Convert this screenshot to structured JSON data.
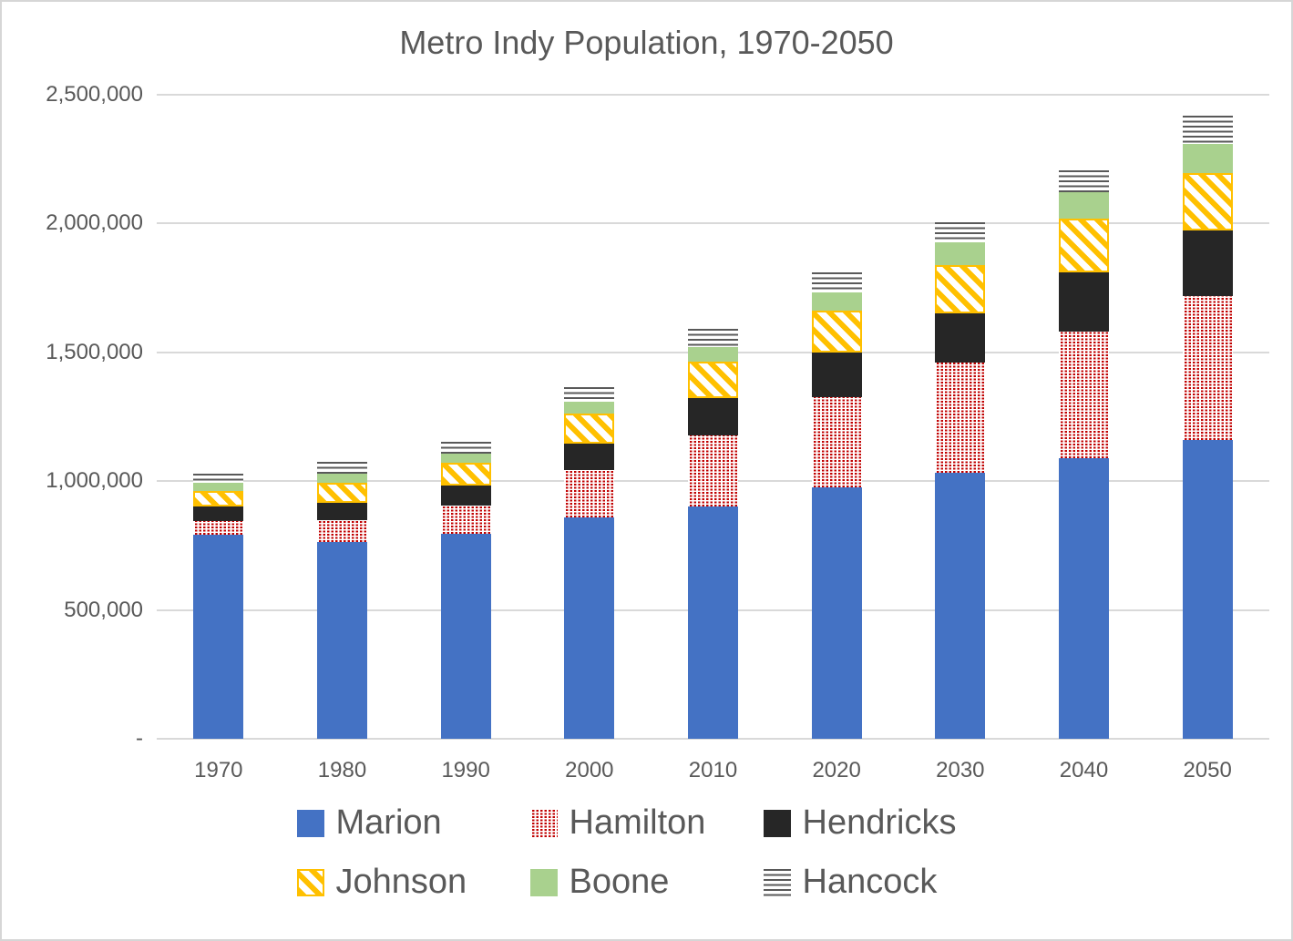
{
  "title": "Metro Indy Population, 1970-2050",
  "chart_data": {
    "type": "bar",
    "stacked": true,
    "title": "Metro Indy Population, 1970-2050",
    "categories": [
      "1970",
      "1980",
      "1990",
      "2000",
      "2010",
      "2020",
      "2030",
      "2040",
      "2050"
    ],
    "series": [
      {
        "name": "Marion",
        "color": "#4472C4",
        "pattern": "solid",
        "values": [
          792299,
          765233,
          797159,
          860454,
          903393,
          977203,
          1031000,
          1090000,
          1160000
        ]
      },
      {
        "name": "Hamilton",
        "color": "#C00000",
        "pattern": "dots",
        "values": [
          54532,
          82027,
          108936,
          182740,
          274569,
          347467,
          430000,
          491000,
          560000
        ]
      },
      {
        "name": "Hendricks",
        "color": "#262626",
        "pattern": "solid",
        "values": [
          53974,
          69804,
          75717,
          104093,
          145448,
          174788,
          192000,
          230000,
          252000
        ]
      },
      {
        "name": "Johnson",
        "color": "#FFC000",
        "pattern": "diag",
        "values": [
          61138,
          77240,
          88109,
          115209,
          139654,
          161765,
          185000,
          207000,
          224000
        ]
      },
      {
        "name": "Boone",
        "color": "#A9D18E",
        "pattern": "solid",
        "values": [
          30870,
          36446,
          38147,
          46107,
          56640,
          70812,
          88000,
          102000,
          114000
        ]
      },
      {
        "name": "Hancock",
        "color": "#595959",
        "pattern": "hlines",
        "values": [
          35096,
          43939,
          45527,
          55391,
          70002,
          79840,
          79000,
          85000,
          110000
        ]
      }
    ],
    "ylim": [
      0,
      2500000
    ],
    "yticks": [
      {
        "label": "2,500,000",
        "value": 2500000
      },
      {
        "label": "2,000,000",
        "value": 2000000
      },
      {
        "label": "1,500,000",
        "value": 1500000
      },
      {
        "label": "1,000,000",
        "value": 1000000
      },
      {
        "label": "500,000",
        "value": 500000
      },
      {
        "label": "-",
        "value": 0
      }
    ],
    "grid": true,
    "legend_position": "bottom",
    "gridline_color": "#D9D9D9",
    "text_color": "#595959"
  },
  "legend": {
    "items": [
      "Marion",
      "Hamilton",
      "Hendricks",
      "Johnson",
      "Boone",
      "Hancock"
    ]
  }
}
